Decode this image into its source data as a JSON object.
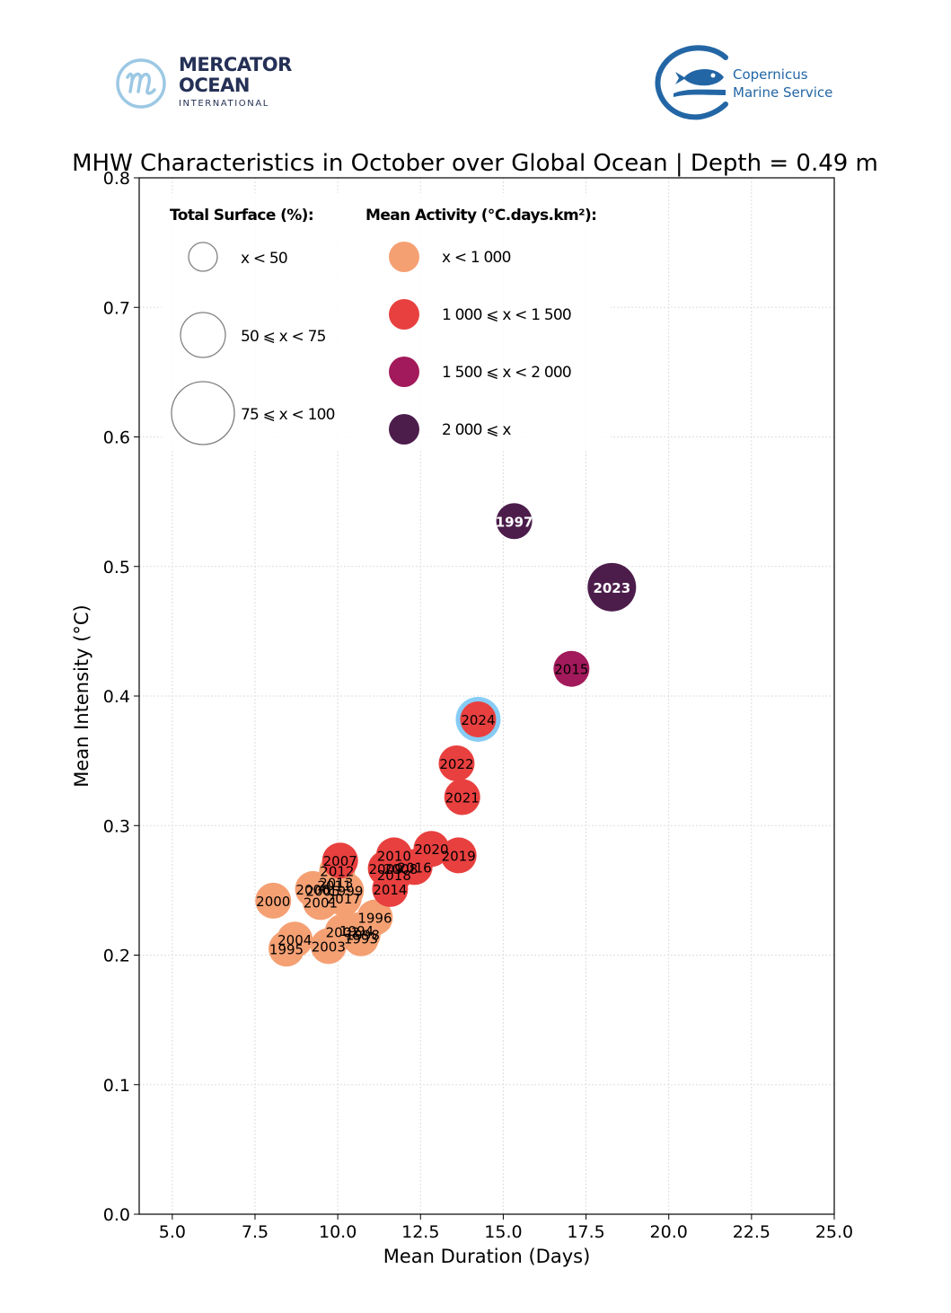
{
  "logos": {
    "mercator": {
      "line1": "MERCATOR",
      "line2": "OCEAN",
      "line3": "INTERNATIONAL",
      "icon": "mercator-m-circle-icon"
    },
    "copernicus": {
      "line1": "Copernicus",
      "line2": "Marine Service",
      "icon": "fish-circle-icon"
    }
  },
  "colors": {
    "activity_lt_1000": "#f5a073",
    "activity_1000_1500": "#e8403f",
    "activity_1500_2000": "#a21a5b",
    "activity_ge_2000": "#4c1d4b",
    "highlight_ring": "#87ccf5",
    "grid": "#dddddd"
  },
  "chart_data": {
    "type": "scatter",
    "title": "MHW Characteristics in October over Global Ocean | Depth = 0.49 m",
    "xlabel": "Mean Duration (Days)",
    "ylabel": "Mean Intensity (°C)",
    "xlim": [
      4.0,
      25.0
    ],
    "ylim": [
      0.0,
      0.8
    ],
    "xticks": [
      "5.0",
      "7.5",
      "10.0",
      "12.5",
      "15.0",
      "17.5",
      "20.0",
      "22.5",
      "25.0"
    ],
    "xtick_values": [
      5.0,
      7.5,
      10.0,
      12.5,
      15.0,
      17.5,
      20.0,
      22.5,
      25.0
    ],
    "yticks": [
      "0.0",
      "0.1",
      "0.2",
      "0.3",
      "0.4",
      "0.5",
      "0.6",
      "0.7",
      "0.8"
    ],
    "ytick_values": [
      0.0,
      0.1,
      0.2,
      0.3,
      0.4,
      0.5,
      0.6,
      0.7,
      0.8
    ],
    "grid": true,
    "legend": {
      "placement": "top-left",
      "size_title": "Total Surface (%):",
      "size_entries": [
        {
          "label": "x < 50",
          "size_class": 0
        },
        {
          "label": "50 ⩽ x < 75",
          "size_class": 1
        },
        {
          "label": "75 ⩽ x < 100",
          "size_class": 2
        }
      ],
      "color_title": "Mean Activity (°C.days.km²):",
      "color_entries": [
        {
          "label": "x < 1 000",
          "activity_class": 0
        },
        {
          "label": "1 000 ⩽ x < 1 500",
          "activity_class": 1
        },
        {
          "label": "1 500 ⩽ x < 2 000",
          "activity_class": 2
        },
        {
          "label": "2 000 ⩽ x",
          "activity_class": 3
        }
      ]
    },
    "highlight_year": "2024",
    "points": [
      {
        "year": "1997",
        "duration": 15.33,
        "intensity": 0.535,
        "size_class": 0,
        "activity_class": 3
      },
      {
        "year": "2023",
        "duration": 18.28,
        "intensity": 0.484,
        "size_class": 1,
        "activity_class": 3
      },
      {
        "year": "2015",
        "duration": 17.06,
        "intensity": 0.421,
        "size_class": 0,
        "activity_class": 2
      },
      {
        "year": "2024",
        "duration": 14.24,
        "intensity": 0.382,
        "size_class": 0,
        "activity_class": 1
      },
      {
        "year": "2022",
        "duration": 13.59,
        "intensity": 0.348,
        "size_class": 0,
        "activity_class": 1
      },
      {
        "year": "2021",
        "duration": 13.76,
        "intensity": 0.322,
        "size_class": 0,
        "activity_class": 1
      },
      {
        "year": "2019",
        "duration": 13.65,
        "intensity": 0.277,
        "size_class": 0,
        "activity_class": 1
      },
      {
        "year": "2020",
        "duration": 12.83,
        "intensity": 0.282,
        "size_class": 0,
        "activity_class": 1
      },
      {
        "year": "2016",
        "duration": 12.32,
        "intensity": 0.268,
        "size_class": 0,
        "activity_class": 1
      },
      {
        "year": "2010",
        "duration": 11.7,
        "intensity": 0.277,
        "size_class": 0,
        "activity_class": 1
      },
      {
        "year": "2009",
        "duration": 11.45,
        "intensity": 0.267,
        "size_class": 0,
        "activity_class": 1
      },
      {
        "year": "2008",
        "duration": 11.9,
        "intensity": 0.267,
        "size_class": 0,
        "activity_class": 1
      },
      {
        "year": "2018",
        "duration": 11.7,
        "intensity": 0.262,
        "size_class": 0,
        "activity_class": 1
      },
      {
        "year": "2014",
        "duration": 11.58,
        "intensity": 0.251,
        "size_class": 0,
        "activity_class": 1
      },
      {
        "year": "2007",
        "duration": 10.07,
        "intensity": 0.273,
        "size_class": 0,
        "activity_class": 1
      },
      {
        "year": "2012",
        "duration": 9.98,
        "intensity": 0.265,
        "size_class": 0,
        "activity_class": 0
      },
      {
        "year": "2013",
        "duration": 9.95,
        "intensity": 0.256,
        "size_class": 0,
        "activity_class": 0
      },
      {
        "year": "2011",
        "duration": 9.9,
        "intensity": 0.254,
        "size_class": 0,
        "activity_class": 0
      },
      {
        "year": "2006",
        "duration": 9.25,
        "intensity": 0.251,
        "size_class": 0,
        "activity_class": 0
      },
      {
        "year": "2005",
        "duration": 9.55,
        "intensity": 0.25,
        "size_class": 0,
        "activity_class": 0
      },
      {
        "year": "1999",
        "duration": 10.25,
        "intensity": 0.25,
        "size_class": 0,
        "activity_class": 0
      },
      {
        "year": "2017",
        "duration": 10.18,
        "intensity": 0.244,
        "size_class": 0,
        "activity_class": 0
      },
      {
        "year": "2001",
        "duration": 9.48,
        "intensity": 0.241,
        "size_class": 0,
        "activity_class": 0
      },
      {
        "year": "2000",
        "duration": 8.05,
        "intensity": 0.242,
        "size_class": 0,
        "activity_class": 0
      },
      {
        "year": "1996",
        "duration": 11.12,
        "intensity": 0.229,
        "size_class": 0,
        "activity_class": 0
      },
      {
        "year": "1994",
        "duration": 10.57,
        "intensity": 0.219,
        "size_class": 0,
        "activity_class": 0
      },
      {
        "year": "2002",
        "duration": 10.15,
        "intensity": 0.218,
        "size_class": 0,
        "activity_class": 0
      },
      {
        "year": "1998",
        "duration": 10.75,
        "intensity": 0.216,
        "size_class": 0,
        "activity_class": 0
      },
      {
        "year": "1993",
        "duration": 10.7,
        "intensity": 0.213,
        "size_class": 0,
        "activity_class": 0
      },
      {
        "year": "2004",
        "duration": 8.7,
        "intensity": 0.212,
        "size_class": 0,
        "activity_class": 0
      },
      {
        "year": "1995",
        "duration": 8.45,
        "intensity": 0.205,
        "size_class": 0,
        "activity_class": 0
      },
      {
        "year": "2003",
        "duration": 9.72,
        "intensity": 0.207,
        "size_class": 0,
        "activity_class": 0
      }
    ]
  }
}
